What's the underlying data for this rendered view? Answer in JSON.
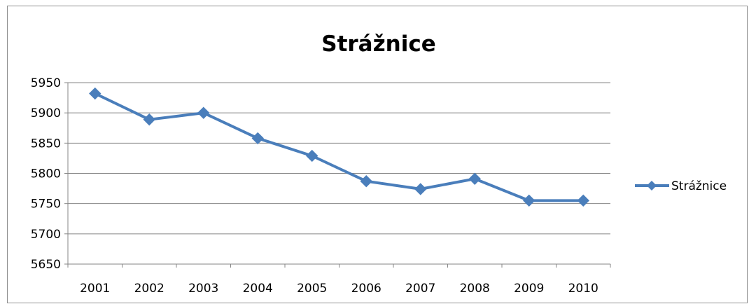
{
  "chart_data": {
    "type": "line",
    "title": "Strážnice",
    "xlabel": "",
    "ylabel": "",
    "categories": [
      "2001",
      "2002",
      "2003",
      "2004",
      "2005",
      "2006",
      "2007",
      "2008",
      "2009",
      "2010"
    ],
    "series": [
      {
        "name": "Strážnice",
        "values": [
          5932,
          5889,
          5900,
          5858,
          5829,
          5787,
          5774,
          5791,
          5755,
          5755
        ]
      }
    ],
    "ylim": [
      5650,
      5950
    ],
    "yticks": [
      "5650",
      "5700",
      "5750",
      "5800",
      "5850",
      "5900",
      "5950"
    ],
    "grid": true,
    "legend": "right",
    "colors": {
      "series": "#4a7ebb",
      "grid": "#868686",
      "axis": "#868686",
      "text": "#000000"
    }
  }
}
